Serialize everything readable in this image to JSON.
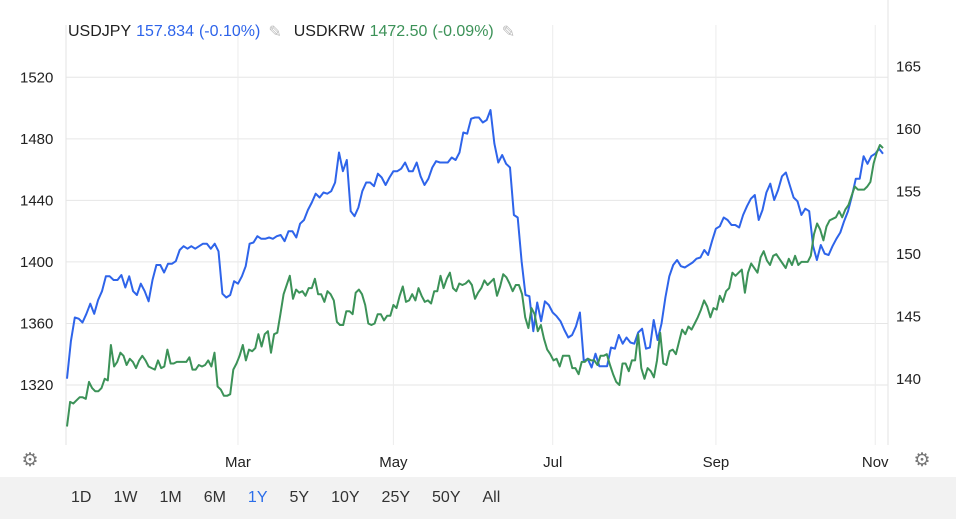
{
  "legend": [
    {
      "symbol": "USDJPY",
      "value": "157.834",
      "change": "(-0.10%)",
      "color": "#2e64ea"
    },
    {
      "symbol": "USDKRW",
      "value": "1472.50",
      "change": "(-0.09%)",
      "color": "#3c9258"
    }
  ],
  "icons": {
    "edit": "pencil-icon",
    "settings": "gear-icon"
  },
  "range_buttons": [
    "1D",
    "1W",
    "1M",
    "6M",
    "1Y",
    "5Y",
    "10Y",
    "25Y",
    "50Y",
    "All"
  ],
  "active_range": "1Y",
  "chart_data": {
    "type": "line",
    "x_tick_labels": [
      "Mar",
      "May",
      "Jul",
      "Sep",
      "Nov"
    ],
    "left_axis": {
      "ticks": [
        1320,
        1360,
        1400,
        1440,
        1480,
        1520
      ],
      "range": [
        1281,
        1541
      ]
    },
    "right_axis": {
      "ticks": [
        140,
        145,
        150,
        155,
        160,
        165
      ],
      "range": [
        134.7,
        166.7
      ]
    },
    "grid": true,
    "series": [
      {
        "name": "USDJPY",
        "axis": "right",
        "color": "#2e64ea",
        "values": [
          140.0,
          143.0,
          144.9,
          144.8,
          144.5,
          145.2,
          146.0,
          145.2,
          146.3,
          147.0,
          148.2,
          148.2,
          147.9,
          147.9,
          148.3,
          147.3,
          148.2,
          147.0,
          146.7,
          147.6,
          147.0,
          146.2,
          147.9,
          149.1,
          149.1,
          148.5,
          149.2,
          149.2,
          149.4,
          150.3,
          150.6,
          150.4,
          150.6,
          150.4,
          150.6,
          150.8,
          150.8,
          150.4,
          150.8,
          150.2,
          146.8,
          146.5,
          146.7,
          147.8,
          147.6,
          148.2,
          149.0,
          150.8,
          150.9,
          151.4,
          151.2,
          151.2,
          151.3,
          151.2,
          151.4,
          151.5,
          151.0,
          151.8,
          151.8,
          151.3,
          152.4,
          152.7,
          153.5,
          154.1,
          154.8,
          154.5,
          154.9,
          154.8,
          155.0,
          155.7,
          158.1,
          156.6,
          157.5,
          153.4,
          153.0,
          153.7,
          155.0,
          155.7,
          155.7,
          155.4,
          156.4,
          156.1,
          155.5,
          156.1,
          156.6,
          156.6,
          156.8,
          157.3,
          156.6,
          156.6,
          157.3,
          156.2,
          155.5,
          156.0,
          156.9,
          157.4,
          157.3,
          157.3,
          157.3,
          157.7,
          157.5,
          158.1,
          159.7,
          159.6,
          160.8,
          160.9,
          160.9,
          160.5,
          160.7,
          161.5,
          158.8,
          157.3,
          157.9,
          157.2,
          156.9,
          153.1,
          152.9,
          149.4,
          146.7,
          146.6,
          143.8,
          146.1,
          144.6,
          146.2,
          145.9,
          145.3,
          145.0,
          144.6,
          143.9,
          143.3,
          143.5,
          144.2,
          145.3,
          141.4,
          141.6,
          140.9,
          142.0,
          141.0,
          141.0,
          141.0,
          142.5,
          142.4,
          143.5,
          142.8,
          143.3,
          142.9,
          142.8,
          143.7,
          144.0,
          142.4,
          142.5,
          144.7,
          143.1,
          144.4,
          146.5,
          148.2,
          149.1,
          149.5,
          149.0,
          148.9,
          149.1,
          149.3,
          149.6,
          149.7,
          150.3,
          149.9,
          151.0,
          152.0,
          152.2,
          152.9,
          152.7,
          152.3,
          152.3,
          152.1,
          153.1,
          153.8,
          154.4,
          154.7,
          152.7,
          153.5,
          154.9,
          155.6,
          154.3,
          155.1,
          156.2,
          156.5,
          155.5,
          154.5,
          154.2,
          153.1,
          153.6,
          153.4,
          150.6,
          149.5,
          150.7,
          150.0,
          149.9,
          150.6,
          151.2,
          151.7,
          152.6,
          153.4,
          154.6,
          156.0,
          156.0,
          157.8,
          157.2,
          157.8,
          158.0,
          158.4,
          158.0
        ]
      },
      {
        "name": "USDKRW",
        "axis": "left",
        "color": "#3c9258",
        "values": [
          1293,
          1309,
          1308,
          1310,
          1312,
          1312,
          1311,
          1322,
          1318,
          1316,
          1316,
          1318,
          1324,
          1323,
          1346,
          1332,
          1335,
          1341,
          1339,
          1333,
          1337,
          1335,
          1331,
          1336,
          1339,
          1336,
          1332,
          1331,
          1330,
          1336,
          1331,
          1332,
          1343,
          1334,
          1334,
          1335,
          1335,
          1335,
          1335,
          1338,
          1330,
          1330,
          1333,
          1332,
          1333,
          1336,
          1332,
          1341,
          1319,
          1317,
          1313,
          1313,
          1314,
          1330,
          1334,
          1339,
          1346,
          1336,
          1343,
          1342,
          1344,
          1353,
          1345,
          1353,
          1355,
          1341,
          1353,
          1354,
          1366,
          1379,
          1385,
          1391,
          1376,
          1382,
          1380,
          1381,
          1378,
          1383,
          1383,
          1389,
          1379,
          1379,
          1374,
          1381,
          1379,
          1375,
          1361,
          1359,
          1359,
          1368,
          1368,
          1366,
          1380,
          1382,
          1379,
          1372,
          1360,
          1359,
          1360,
          1366,
          1366,
          1362,
          1365,
          1365,
          1372,
          1370,
          1378,
          1384,
          1374,
          1375,
          1379,
          1375,
          1383,
          1378,
          1374,
          1375,
          1373,
          1381,
          1381,
          1391,
          1383,
          1389,
          1393,
          1383,
          1381,
          1386,
          1385,
          1386,
          1388,
          1385,
          1376,
          1380,
          1383,
          1388,
          1385,
          1387,
          1389,
          1378,
          1384,
          1392,
          1390,
          1386,
          1381,
          1385,
          1385,
          1379,
          1364,
          1357,
          1370,
          1366,
          1355,
          1359,
          1350,
          1343,
          1340,
          1336,
          1337,
          1332,
          1339,
          1339,
          1339,
          1331,
          1331,
          1327,
          1335,
          1335,
          1337,
          1336,
          1336,
          1333,
          1339,
          1339,
          1340,
          1333,
          1327,
          1322,
          1320,
          1334,
          1334,
          1329,
          1336,
          1336,
          1353,
          1331,
          1324,
          1331,
          1329,
          1325,
          1336,
          1354,
          1334,
          1333,
          1342,
          1343,
          1340,
          1348,
          1356,
          1353,
          1358,
          1356,
          1360,
          1364,
          1369,
          1375,
          1371,
          1364,
          1370,
          1369,
          1378,
          1374,
          1381,
          1383,
          1393,
          1391,
          1393,
          1395,
          1380,
          1393,
          1399,
          1396,
          1393,
          1403,
          1407,
          1401,
          1398,
          1404,
          1405,
          1402,
          1399,
          1396,
          1402,
          1398,
          1404,
          1398,
          1400,
          1400,
          1400,
          1404,
          1418,
          1425,
          1421,
          1414,
          1423,
          1427,
          1428,
          1429,
          1433,
          1429,
          1434,
          1437,
          1443,
          1449,
          1447,
          1447,
          1447,
          1449,
          1452,
          1464,
          1471,
          1476,
          1474
        ]
      }
    ]
  }
}
